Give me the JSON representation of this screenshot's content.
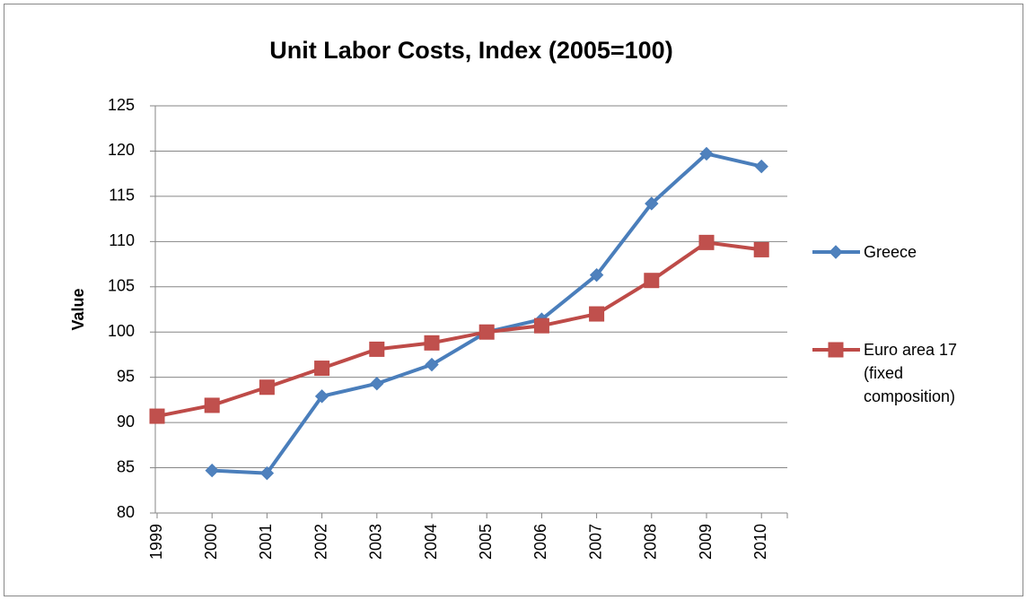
{
  "chart_data": {
    "type": "line",
    "title": "Unit Labor Costs, Index (2005=100)",
    "y_label": "Value",
    "categories": [
      "1999",
      "2000",
      "2001",
      "2002",
      "2003",
      "2004",
      "2005",
      "2006",
      "2007",
      "2008",
      "2009",
      "2010"
    ],
    "series": [
      {
        "name": "Greece",
        "color": "#4a7ebb",
        "marker": "diamond",
        "values": [
          null,
          84.7,
          84.4,
          92.9,
          94.3,
          96.4,
          100.0,
          101.4,
          106.3,
          114.2,
          119.7,
          118.3
        ]
      },
      {
        "name": "Euro area 17 (fixed composition)",
        "color": "#be4b48",
        "marker": "square",
        "values": [
          90.7,
          91.9,
          93.9,
          96.0,
          98.1,
          98.8,
          100.0,
          100.7,
          102.0,
          105.7,
          109.9,
          109.1
        ]
      }
    ],
    "ylim": [
      80,
      125
    ],
    "yticks": [
      80,
      85,
      90,
      95,
      100,
      105,
      110,
      115,
      120,
      125
    ],
    "grid": true,
    "legend": "right"
  }
}
